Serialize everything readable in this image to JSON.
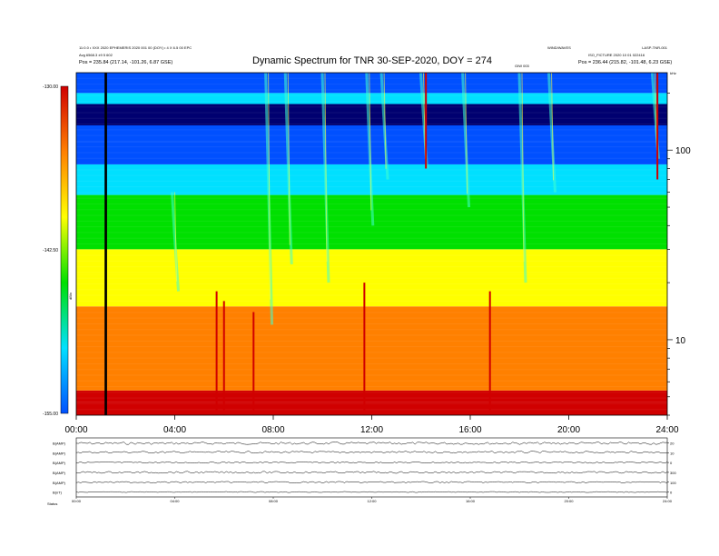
{
  "header": {
    "title": "Dynamic Spectrum for TNR 30-SEP-2020, DOY = 274",
    "left_line1": "11:0.0 • XXX 2020 EPHEMERIS 2020 001 00 (DOY) • 4 X 6.5 00 EPC",
    "left_line2": "Avg 6568.3 ±9 5 602",
    "left_pos": "Pos =  235.84 (217.14, -101.26, 6.87 GSE)",
    "right_line1": "WIND/WAVES",
    "right_line2": "LASP-TNR-001",
    "right_line3": "ISO_FICTURE 2020 10 01 022416",
    "right_pos": "Pos =  236.44 (215.82, -101.48, 6.23 GSE)",
    "mid_tag": "GIW 003",
    "corner_tag": "kHz"
  },
  "colorbar": {
    "top_label": "-130.00",
    "mid_label": "-142.50",
    "bottom_label": "-155.00",
    "unit_label": "dB/v"
  },
  "chart_data": [
    {
      "type": "heatmap",
      "title": "Dynamic Spectrum for TNR 30-SEP-2020, DOY = 274",
      "x_ticks": [
        "00:00",
        "04:00",
        "08:00",
        "12:00",
        "16:00",
        "20:00",
        "24:00"
      ],
      "x_range_hours": [
        0,
        24
      ],
      "y_scale": "log",
      "y_ticks": [
        "100",
        "10"
      ],
      "y_unit": "kHz",
      "y_range_khz": [
        4,
        256
      ],
      "color_range_db": [
        -155,
        -130
      ],
      "colormap": [
        "#d00000",
        "#ff8000",
        "#ffff00",
        "#00e000",
        "#00e0ff",
        "#0050ff",
        "#000070",
        "#000000"
      ],
      "background_bands": [
        {
          "from_khz": 4,
          "to_khz": 4.7,
          "level": 0.0
        },
        {
          "from_khz": 4.7,
          "to_khz": 5.4,
          "level": 0.05
        },
        {
          "from_khz": 5.4,
          "to_khz": 15,
          "level": 0.12
        },
        {
          "from_khz": 15,
          "to_khz": 22,
          "level": 0.22
        },
        {
          "from_khz": 22,
          "to_khz": 30,
          "level": 0.32
        },
        {
          "from_khz": 30,
          "to_khz": 58,
          "level": 0.45
        },
        {
          "from_khz": 58,
          "to_khz": 84,
          "level": 0.52
        },
        {
          "from_khz": 84,
          "to_khz": 110,
          "level": 0.68
        },
        {
          "from_khz": 110,
          "to_khz": 135,
          "level": 0.78
        },
        {
          "from_khz": 135,
          "to_khz": 175,
          "level": 0.88
        },
        {
          "from_khz": 175,
          "to_khz": 200,
          "level": 0.55
        },
        {
          "from_khz": 200,
          "to_khz": 256,
          "level": 0.75
        }
      ],
      "bursts": [
        {
          "hour": 4.0,
          "top_khz": 60,
          "bottom_khz": 18
        },
        {
          "hour": 7.8,
          "top_khz": 256,
          "bottom_khz": 12
        },
        {
          "hour": 8.6,
          "top_khz": 256,
          "bottom_khz": 25
        },
        {
          "hour": 10.1,
          "top_khz": 256,
          "bottom_khz": 20
        },
        {
          "hour": 11.9,
          "top_khz": 256,
          "bottom_khz": 40
        },
        {
          "hour": 12.5,
          "top_khz": 256,
          "bottom_khz": 70
        },
        {
          "hour": 14.1,
          "top_khz": 256,
          "bottom_khz": 80
        },
        {
          "hour": 15.8,
          "top_khz": 256,
          "bottom_khz": 50
        },
        {
          "hour": 18.1,
          "top_khz": 256,
          "bottom_khz": 20
        },
        {
          "hour": 19.3,
          "top_khz": 256,
          "bottom_khz": 60
        },
        {
          "hour": 23.5,
          "top_khz": 256,
          "bottom_khz": 90
        }
      ],
      "red_spikes": [
        {
          "hour": 14.2,
          "top_khz": 256,
          "bottom_khz": 80
        },
        {
          "hour": 23.6,
          "top_khz": 256,
          "bottom_khz": 70
        },
        {
          "hour": 5.7,
          "top_khz": 18,
          "bottom_khz": 4
        },
        {
          "hour": 6.0,
          "top_khz": 16,
          "bottom_khz": 4
        },
        {
          "hour": 7.2,
          "top_khz": 14,
          "bottom_khz": 4
        },
        {
          "hour": 11.7,
          "top_khz": 20,
          "bottom_khz": 4
        },
        {
          "hour": 16.8,
          "top_khz": 18,
          "bottom_khz": 4
        }
      ],
      "data_gap_hours": [
        1.15,
        1.25
      ]
    },
    {
      "type": "line",
      "x_range_hours": [
        0,
        24
      ],
      "x_ticks": [
        "00:00",
        "04:00",
        "08:00",
        "12:00",
        "16:00",
        "20:00",
        "24:00"
      ],
      "series": [
        {
          "name": "B(AMP)",
          "right_label": "20",
          "baseline": 0.45,
          "noise": 0.25
        },
        {
          "name": "B(AMP)",
          "right_label": "10",
          "baseline": 0.55,
          "noise": 0.2
        },
        {
          "name": "B(AMP)",
          "right_label": "0",
          "baseline": 0.5,
          "noise": 0.15
        },
        {
          "name": "B(AMP)",
          "right_label": "300",
          "baseline": 0.5,
          "noise": 0.2
        },
        {
          "name": "B(AMP)",
          "right_label": "100",
          "baseline": 0.5,
          "noise": 0.15
        },
        {
          "name": "B(nT)",
          "right_label": "0",
          "baseline": 0.5,
          "noise": 0.1
        }
      ],
      "bottom_label": "Status"
    }
  ]
}
